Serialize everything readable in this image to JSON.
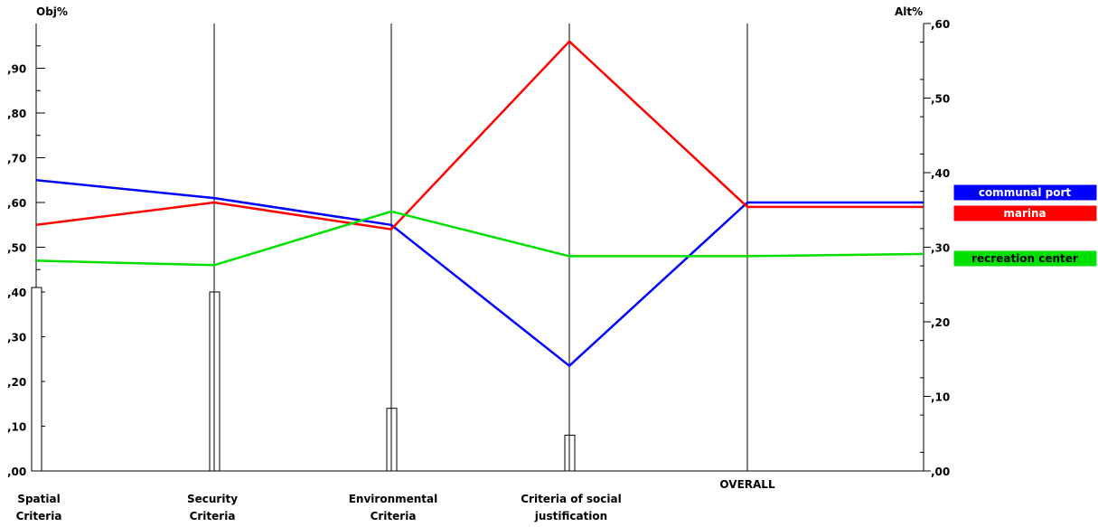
{
  "chart_data": {
    "type": "line",
    "left_axis": {
      "title": "Obj%",
      "range": [
        0,
        1.0
      ],
      "ticks": [
        {
          "value": 0.0,
          "label": ",00"
        },
        {
          "value": 0.1,
          "label": ",10"
        },
        {
          "value": 0.2,
          "label": ",20"
        },
        {
          "value": 0.3,
          "label": ",30"
        },
        {
          "value": 0.4,
          "label": ",40"
        },
        {
          "value": 0.5,
          "label": ",50"
        },
        {
          "value": 0.6,
          "label": ",60"
        },
        {
          "value": 0.7,
          "label": ",70"
        },
        {
          "value": 0.8,
          "label": ",80"
        },
        {
          "value": 0.9,
          "label": ",90"
        }
      ]
    },
    "right_axis": {
      "title": "Alt%",
      "range": [
        0,
        0.6
      ],
      "ticks": [
        {
          "value": 0.0,
          "label": ",00"
        },
        {
          "value": 0.1,
          "label": ",10"
        },
        {
          "value": 0.2,
          "label": ",20"
        },
        {
          "value": 0.3,
          "label": ",30"
        },
        {
          "value": 0.4,
          "label": ",40"
        },
        {
          "value": 0.5,
          "label": ",50"
        },
        {
          "value": 0.6,
          "label": ",60"
        }
      ]
    },
    "criteria": [
      {
        "label": [
          "Spatial",
          "Criteria"
        ],
        "weight": 0.41
      },
      {
        "label": [
          "Security",
          "Criteria"
        ],
        "weight": 0.4
      },
      {
        "label": [
          "Environmental",
          "Criteria"
        ],
        "weight": 0.14
      },
      {
        "label": [
          "Criteria of social",
          "justification"
        ],
        "weight": 0.08
      },
      {
        "label": [
          "OVERALL"
        ],
        "weight": null
      }
    ],
    "series": [
      {
        "name": "communal port",
        "color": "#0000ff",
        "values": [
          0.65,
          0.61,
          0.55,
          0.235,
          0.6,
          0.6
        ]
      },
      {
        "name": "marina",
        "color": "#ff0000",
        "values": [
          0.55,
          0.6,
          0.54,
          0.96,
          0.59,
          0.59
        ]
      },
      {
        "name": "recreation center",
        "color": "#00e000",
        "values": [
          0.47,
          0.46,
          0.58,
          0.48,
          0.48,
          0.485
        ]
      }
    ]
  }
}
